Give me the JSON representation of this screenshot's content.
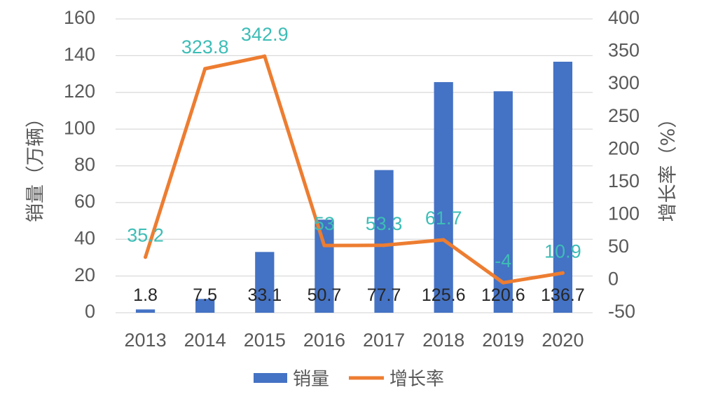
{
  "chart_data": {
    "type": "bar",
    "categories": [
      "2013",
      "2014",
      "2015",
      "2016",
      "2017",
      "2018",
      "2019",
      "2020"
    ],
    "series": [
      {
        "name": "销量",
        "type": "bar",
        "axis": "left",
        "values": [
          1.8,
          7.5,
          33.1,
          50.7,
          77.7,
          125.6,
          120.6,
          136.7
        ],
        "value_labels": [
          "1.8",
          "7.5",
          "33.1",
          "50.7",
          "77.7",
          "125.6",
          "120.6",
          "136.7"
        ]
      },
      {
        "name": "增长率",
        "type": "line",
        "axis": "right",
        "values": [
          35.2,
          323.8,
          342.9,
          53,
          53.3,
          61.7,
          -4,
          10.9
        ],
        "value_labels": [
          "35.2",
          "323.8",
          "342.9",
          "53",
          "53.3",
          "61.7",
          "-4",
          "10.9"
        ]
      }
    ],
    "ylabel": "销量（万辆）",
    "y2label": "增长率（%）",
    "ylim": [
      0,
      160
    ],
    "y2lim": [
      -50,
      400
    ],
    "yticks": [
      "0",
      "20",
      "40",
      "60",
      "80",
      "100",
      "120",
      "140",
      "160"
    ],
    "y2ticks": [
      "-50",
      "0",
      "50",
      "100",
      "150",
      "200",
      "250",
      "300",
      "350",
      "400"
    ],
    "grid": true,
    "legend_position": "bottom",
    "colors": {
      "bar": "#4472c4",
      "line": "#ed7d31",
      "line_labels": "#3dbdb6",
      "bar_labels": "#262626"
    }
  }
}
